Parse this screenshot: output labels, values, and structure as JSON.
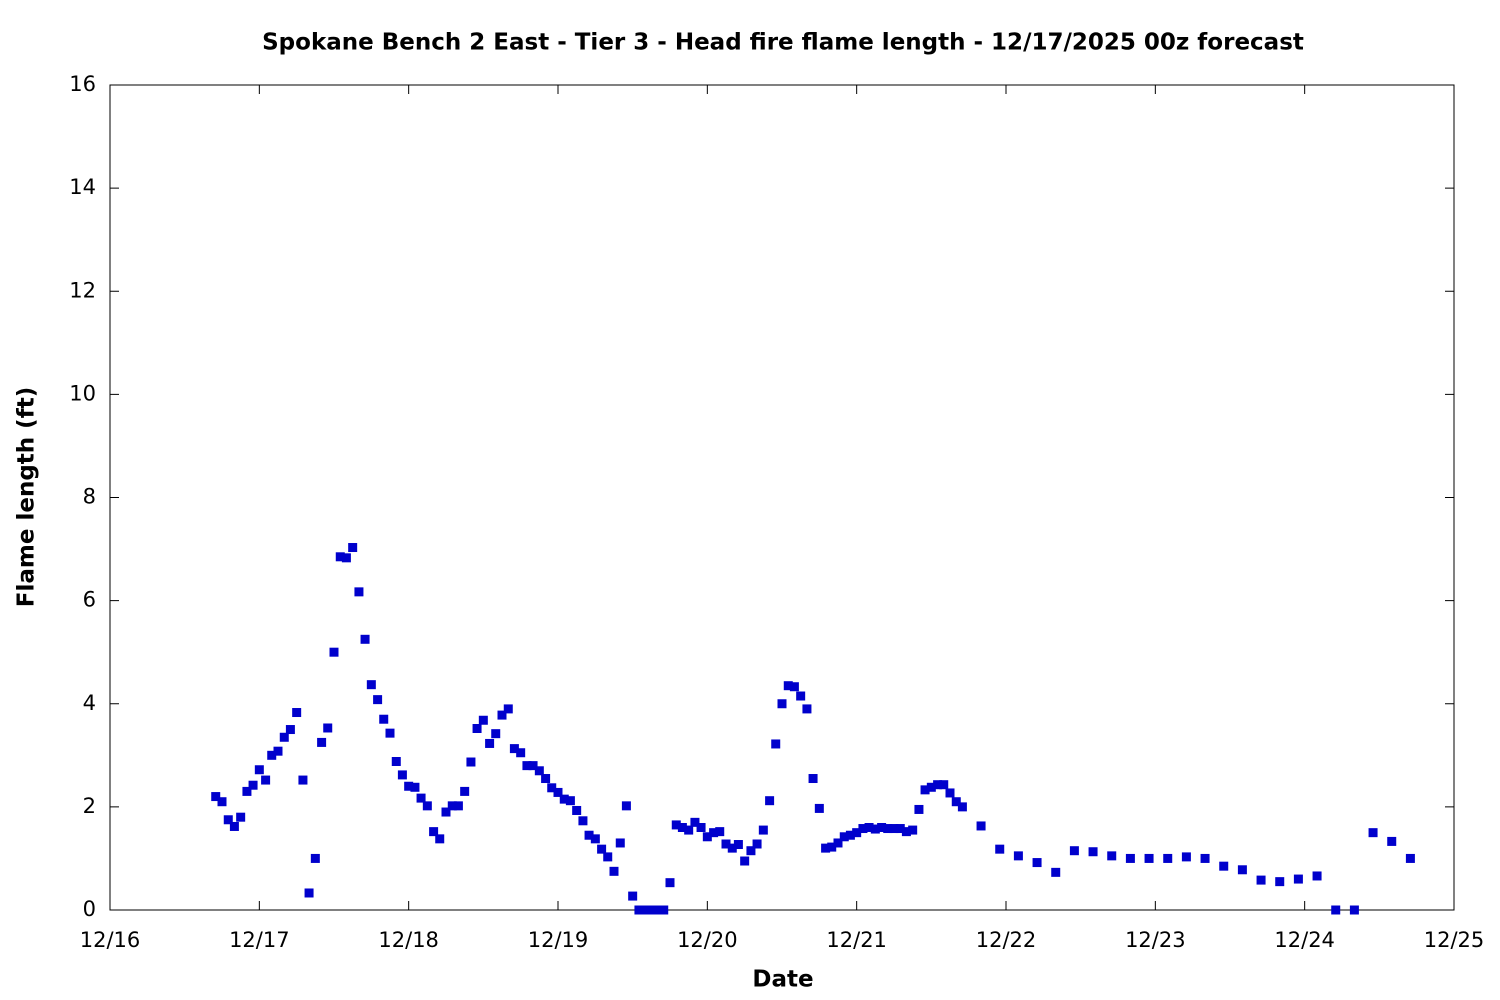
{
  "chart_data": {
    "type": "scatter",
    "title": "Spokane Bench 2 East - Tier 3 - Head fire flame length - 12/17/2025 00z forecast",
    "x_label": "Date",
    "y_label": "Flame length (ft)",
    "color": "#0000cc",
    "xlim": [
      16,
      25
    ],
    "xticks": [
      {
        "value": 16,
        "label": "12/16"
      },
      {
        "value": 17,
        "label": "12/17"
      },
      {
        "value": 18,
        "label": "12/18"
      },
      {
        "value": 19,
        "label": "12/19"
      },
      {
        "value": 20,
        "label": "12/20"
      },
      {
        "value": 21,
        "label": "12/21"
      },
      {
        "value": 22,
        "label": "12/22"
      },
      {
        "value": 23,
        "label": "12/23"
      },
      {
        "value": 24,
        "label": "12/24"
      },
      {
        "value": 25,
        "label": "12/25"
      }
    ],
    "ylim": [
      0,
      16
    ],
    "yticks": [
      0,
      2,
      4,
      6,
      8,
      10,
      12,
      14,
      16
    ],
    "x": [
      16.708,
      16.75,
      16.792,
      16.833,
      16.875,
      16.917,
      16.958,
      17,
      17.042,
      17.083,
      17.125,
      17.167,
      17.208,
      17.25,
      17.292,
      17.333,
      17.375,
      17.417,
      17.458,
      17.5,
      17.542,
      17.583,
      17.625,
      17.667,
      17.708,
      17.75,
      17.792,
      17.833,
      17.875,
      17.917,
      17.958,
      18,
      18.042,
      18.083,
      18.125,
      18.167,
      18.208,
      18.25,
      18.292,
      18.333,
      18.375,
      18.417,
      18.458,
      18.5,
      18.542,
      18.583,
      18.625,
      18.667,
      18.708,
      18.75,
      18.792,
      18.833,
      18.875,
      18.917,
      18.958,
      19,
      19.042,
      19.083,
      19.125,
      19.167,
      19.208,
      19.25,
      19.292,
      19.333,
      19.375,
      19.417,
      19.458,
      19.5,
      19.542,
      19.583,
      19.625,
      19.667,
      19.708,
      19.75,
      19.792,
      19.833,
      19.875,
      19.917,
      19.958,
      20,
      20.042,
      20.083,
      20.125,
      20.167,
      20.208,
      20.25,
      20.292,
      20.333,
      20.375,
      20.417,
      20.458,
      20.5,
      20.542,
      20.583,
      20.625,
      20.667,
      20.708,
      20.75,
      20.792,
      20.833,
      20.875,
      20.917,
      20.958,
      21,
      21.042,
      21.083,
      21.125,
      21.167,
      21.208,
      21.25,
      21.292,
      21.333,
      21.375,
      21.417,
      21.458,
      21.5,
      21.542,
      21.583,
      21.625,
      21.667,
      21.708,
      21.833,
      21.958,
      22.083,
      22.208,
      22.333,
      22.458,
      22.583,
      22.708,
      22.833,
      22.958,
      23.083,
      23.208,
      23.333,
      23.458,
      23.583,
      23.708,
      23.833,
      23.958,
      24.083,
      24.208,
      24.333,
      24.458,
      24.583,
      24.708
    ],
    "values": [
      2.2,
      2.1,
      1.75,
      1.62,
      1.8,
      2.3,
      2.42,
      2.72,
      2.52,
      3.0,
      3.08,
      3.35,
      3.5,
      3.83,
      2.52,
      0.33,
      1.0,
      3.25,
      3.53,
      5.0,
      6.85,
      6.83,
      7.03,
      6.17,
      5.25,
      4.37,
      4.08,
      3.7,
      3.43,
      2.88,
      2.62,
      2.4,
      2.38,
      2.17,
      2.02,
      1.52,
      1.38,
      1.9,
      2.02,
      2.02,
      2.3,
      2.87,
      3.52,
      3.68,
      3.23,
      3.42,
      3.78,
      3.9,
      3.13,
      3.05,
      2.8,
      2.8,
      2.7,
      2.55,
      2.37,
      2.28,
      2.15,
      2.12,
      1.93,
      1.73,
      1.45,
      1.38,
      1.18,
      1.03,
      0.75,
      1.3,
      2.02,
      0.27,
      0,
      0,
      0,
      0,
      0,
      0.53,
      1.65,
      1.6,
      1.55,
      1.7,
      1.6,
      1.42,
      1.5,
      1.52,
      1.28,
      1.2,
      1.27,
      0.95,
      1.15,
      1.28,
      1.55,
      2.12,
      3.22,
      4.0,
      4.35,
      4.33,
      4.15,
      3.9,
      2.55,
      1.97,
      1.2,
      1.22,
      1.3,
      1.42,
      1.45,
      1.5,
      1.58,
      1.6,
      1.57,
      1.6,
      1.58,
      1.58,
      1.58,
      1.52,
      1.55,
      1.95,
      2.33,
      2.38,
      2.43,
      2.43,
      2.27,
      2.1,
      2.0,
      1.63,
      1.18,
      1.05,
      0.92,
      0.73,
      1.15,
      1.13,
      1.05,
      1.0,
      1.0,
      1.0,
      1.03,
      1.0,
      0.85,
      0.78,
      0.58,
      0.55,
      0.6,
      0.66,
      0,
      0,
      1.5,
      1.33,
      1.0
    ]
  }
}
